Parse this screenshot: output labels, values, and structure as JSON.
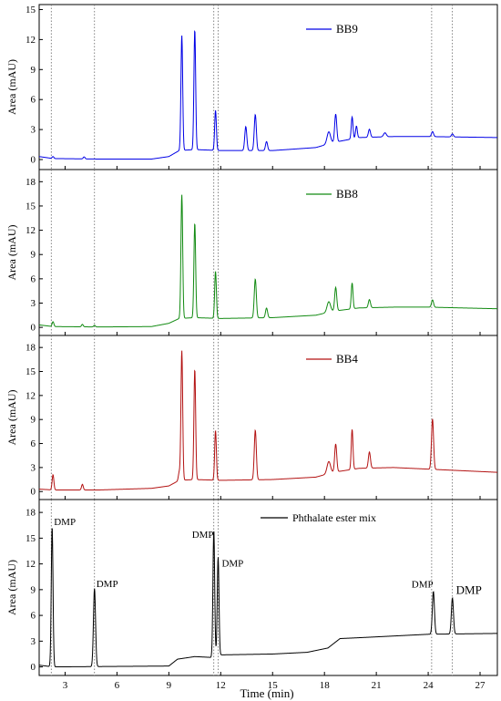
{
  "chart_data": {
    "type": "line",
    "xlabel": "Time (min)",
    "ylabel": "Area (mAU)",
    "xlim": [
      1.5,
      28
    ],
    "xticks": [
      3,
      6,
      9,
      12,
      15,
      18,
      21,
      24,
      27
    ],
    "reference_lines_x": [
      2.2,
      4.7,
      11.6,
      11.85,
      24.2,
      25.4
    ],
    "panels": [
      {
        "legend": "BB9",
        "color": "#0000e6",
        "ylim": [
          -1,
          15.5
        ],
        "yticks": [
          0,
          3,
          6,
          9,
          12,
          15
        ],
        "baseline": [
          [
            1.5,
            0.3
          ],
          [
            2.3,
            0.1
          ],
          [
            5,
            0.05
          ],
          [
            8,
            0.05
          ],
          [
            9,
            0.3
          ],
          [
            9.6,
            0.9
          ],
          [
            10.5,
            1.0
          ],
          [
            12,
            0.9
          ],
          [
            15,
            0.9
          ],
          [
            17.5,
            1.2
          ],
          [
            18.5,
            1.7
          ],
          [
            20,
            2.2
          ],
          [
            22,
            2.3
          ],
          [
            24,
            2.3
          ],
          [
            28,
            2.2
          ]
        ],
        "peaks": [
          [
            2.3,
            0.2,
            0.05
          ],
          [
            4.1,
            0.2,
            0.05
          ],
          [
            9.75,
            11.5,
            0.05
          ],
          [
            10.5,
            12.0,
            0.05
          ],
          [
            11.7,
            4.0,
            0.05
          ],
          [
            13.45,
            2.4,
            0.06
          ],
          [
            14,
            3.6,
            0.06
          ],
          [
            14.65,
            0.9,
            0.06
          ],
          [
            18.25,
            1.2,
            0.1
          ],
          [
            18.65,
            2.8,
            0.06
          ],
          [
            19.6,
            2.2,
            0.05
          ],
          [
            19.85,
            1.2,
            0.05
          ],
          [
            20.6,
            0.8,
            0.06
          ],
          [
            21.5,
            0.4,
            0.08
          ],
          [
            24.25,
            0.5,
            0.06
          ],
          [
            25.4,
            0.3,
            0.06
          ]
        ]
      },
      {
        "legend": "BB8",
        "color": "#118a11",
        "ylim": [
          -1,
          19.5
        ],
        "yticks": [
          0,
          3,
          6,
          9,
          12,
          15,
          18
        ],
        "baseline": [
          [
            1.5,
            0.3
          ],
          [
            2.3,
            0.1
          ],
          [
            5,
            0.05
          ],
          [
            8,
            0.1
          ],
          [
            9,
            0.5
          ],
          [
            9.6,
            1.1
          ],
          [
            10.5,
            1.2
          ],
          [
            12,
            1.1
          ],
          [
            15,
            1.2
          ],
          [
            17.5,
            1.5
          ],
          [
            18.5,
            2.0
          ],
          [
            20,
            2.4
          ],
          [
            22,
            2.5
          ],
          [
            24,
            2.5
          ],
          [
            28,
            2.3
          ]
        ],
        "peaks": [
          [
            2.3,
            0.6,
            0.05
          ],
          [
            4.0,
            0.3,
            0.05
          ],
          [
            4.7,
            0.2,
            0.05
          ],
          [
            9.75,
            15.3,
            0.05
          ],
          [
            10.5,
            11.7,
            0.05
          ],
          [
            11.7,
            5.8,
            0.05
          ],
          [
            14,
            4.8,
            0.06
          ],
          [
            14.65,
            1.2,
            0.06
          ],
          [
            18.25,
            1.3,
            0.1
          ],
          [
            18.65,
            2.9,
            0.06
          ],
          [
            19.6,
            3.2,
            0.05
          ],
          [
            20.6,
            1.0,
            0.06
          ],
          [
            24.25,
            0.9,
            0.06
          ]
        ]
      },
      {
        "legend": "BB4",
        "color": "#b31212",
        "ylim": [
          -1,
          19.5
        ],
        "yticks": [
          0,
          3,
          6,
          9,
          12,
          15,
          18
        ],
        "baseline": [
          [
            1.5,
            0.3
          ],
          [
            2.3,
            0.2
          ],
          [
            5,
            0.2
          ],
          [
            8,
            0.4
          ],
          [
            9,
            0.7
          ],
          [
            9.6,
            1.4
          ],
          [
            10.5,
            1.5
          ],
          [
            12,
            1.4
          ],
          [
            15,
            1.5
          ],
          [
            17.5,
            1.8
          ],
          [
            18.5,
            2.4
          ],
          [
            20,
            2.9
          ],
          [
            22,
            3.0
          ],
          [
            24,
            2.8
          ],
          [
            28,
            2.4
          ]
        ],
        "peaks": [
          [
            2.3,
            1.9,
            0.05
          ],
          [
            4.0,
            0.7,
            0.05
          ],
          [
            9.6,
            1.0,
            0.05
          ],
          [
            9.75,
            16.2,
            0.05
          ],
          [
            10.5,
            13.8,
            0.05
          ],
          [
            11.7,
            6.2,
            0.05
          ],
          [
            14,
            6.2,
            0.06
          ],
          [
            18.25,
            1.5,
            0.1
          ],
          [
            18.65,
            3.5,
            0.06
          ],
          [
            19.6,
            5.0,
            0.05
          ],
          [
            20.6,
            2.0,
            0.06
          ],
          [
            24.25,
            6.3,
            0.06
          ]
        ]
      },
      {
        "legend": "Phthalate ester mix",
        "color": "#000000",
        "ylim": [
          -1,
          19.5
        ],
        "yticks": [
          0,
          3,
          6,
          9,
          12,
          15,
          18
        ],
        "baseline": [
          [
            1.5,
            0.2
          ],
          [
            2.3,
            0.0
          ],
          [
            9,
            0.1
          ],
          [
            9.5,
            0.9
          ],
          [
            10.5,
            1.2
          ],
          [
            11.5,
            1.1
          ],
          [
            12,
            1.4
          ],
          [
            15,
            1.5
          ],
          [
            17,
            1.7
          ],
          [
            18.2,
            2.2
          ],
          [
            18.9,
            3.3
          ],
          [
            20,
            3.4
          ],
          [
            22,
            3.6
          ],
          [
            24,
            3.8
          ],
          [
            28,
            3.9
          ]
        ],
        "peaks": [
          [
            2.25,
            16.3,
            0.05
          ],
          [
            4.7,
            9.1,
            0.06
          ],
          [
            11.6,
            14.8,
            0.05
          ],
          [
            11.85,
            11.5,
            0.05
          ],
          [
            24.3,
            5.0,
            0.06
          ],
          [
            25.4,
            4.2,
            0.06
          ]
        ],
        "annotations": [
          {
            "text": "DMP",
            "x": 2.25,
            "y": 16.3
          },
          {
            "text": "DMP",
            "x": 4.7,
            "y": 9.1
          },
          {
            "text": "DMP",
            "x": 11.6,
            "y": 14.8
          },
          {
            "text": "DMP",
            "x": 11.85,
            "y": 11.5
          },
          {
            "text": "DMP",
            "x": 24.3,
            "y": 8.8
          },
          {
            "text": "DMP",
            "x": 25.4,
            "y": 8.1
          }
        ]
      }
    ]
  }
}
